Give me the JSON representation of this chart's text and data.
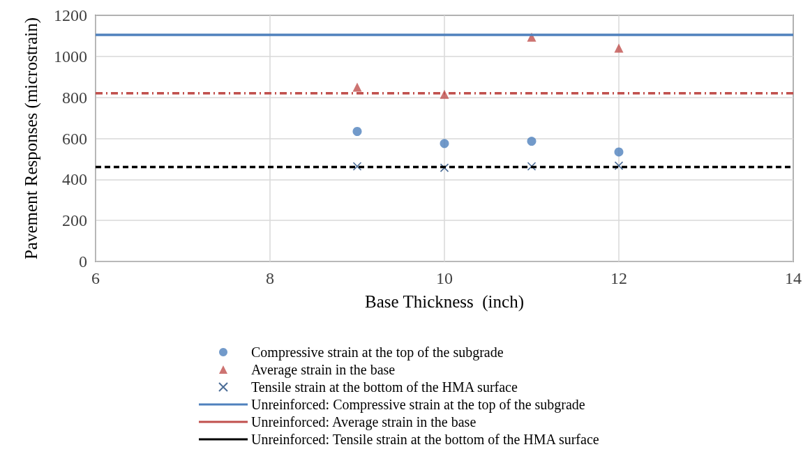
{
  "chart_data": {
    "type": "scatter",
    "xlabel": "Base Thickness  (inch)",
    "ylabel": "Pavement Responses (microstrain)",
    "xlim": [
      6,
      14
    ],
    "xticks": [
      6,
      8,
      10,
      12,
      14
    ],
    "ylim": [
      0,
      1200
    ],
    "yticks": [
      0,
      200,
      400,
      600,
      800,
      1000,
      1200
    ],
    "grid": true,
    "legend": "bottom",
    "series": [
      {
        "name": "Compressive strain at the top of the subgrade",
        "marker": "circle",
        "color": "#4f81bd",
        "x": [
          9,
          10,
          11,
          12
        ],
        "values": [
          634,
          575,
          586,
          534
        ]
      },
      {
        "name": "Average strain in the base",
        "marker": "triangle",
        "color": "#c0504d",
        "x": [
          9,
          10,
          11,
          12
        ],
        "values": [
          850,
          815,
          1094,
          1040
        ]
      },
      {
        "name": "Tensile strain at the bottom of the HMA surface",
        "marker": "cross",
        "color": "#1f497d",
        "x": [
          9,
          10,
          11,
          12
        ],
        "values": [
          464,
          457,
          464,
          467
        ]
      },
      {
        "name": "Unreinforced: Compressive strain at the top of the subgrade",
        "type": "line",
        "line_style": "solid",
        "marker": "none",
        "color": "#4f81bd",
        "x": [
          6,
          14
        ],
        "values": [
          1105,
          1105
        ]
      },
      {
        "name": "Unreinforced: Average strain in the base",
        "type": "line",
        "line_style": "dashdot",
        "marker": "none",
        "color": "#c0504d",
        "x": [
          6,
          14
        ],
        "values": [
          820,
          820
        ]
      },
      {
        "name": "Unreinforced: Tensile strain at the bottom of the HMA surface",
        "type": "line",
        "line_style": "dashed",
        "marker": "none",
        "color": "#000000",
        "x": [
          6,
          14
        ],
        "values": [
          461,
          461
        ]
      }
    ]
  }
}
